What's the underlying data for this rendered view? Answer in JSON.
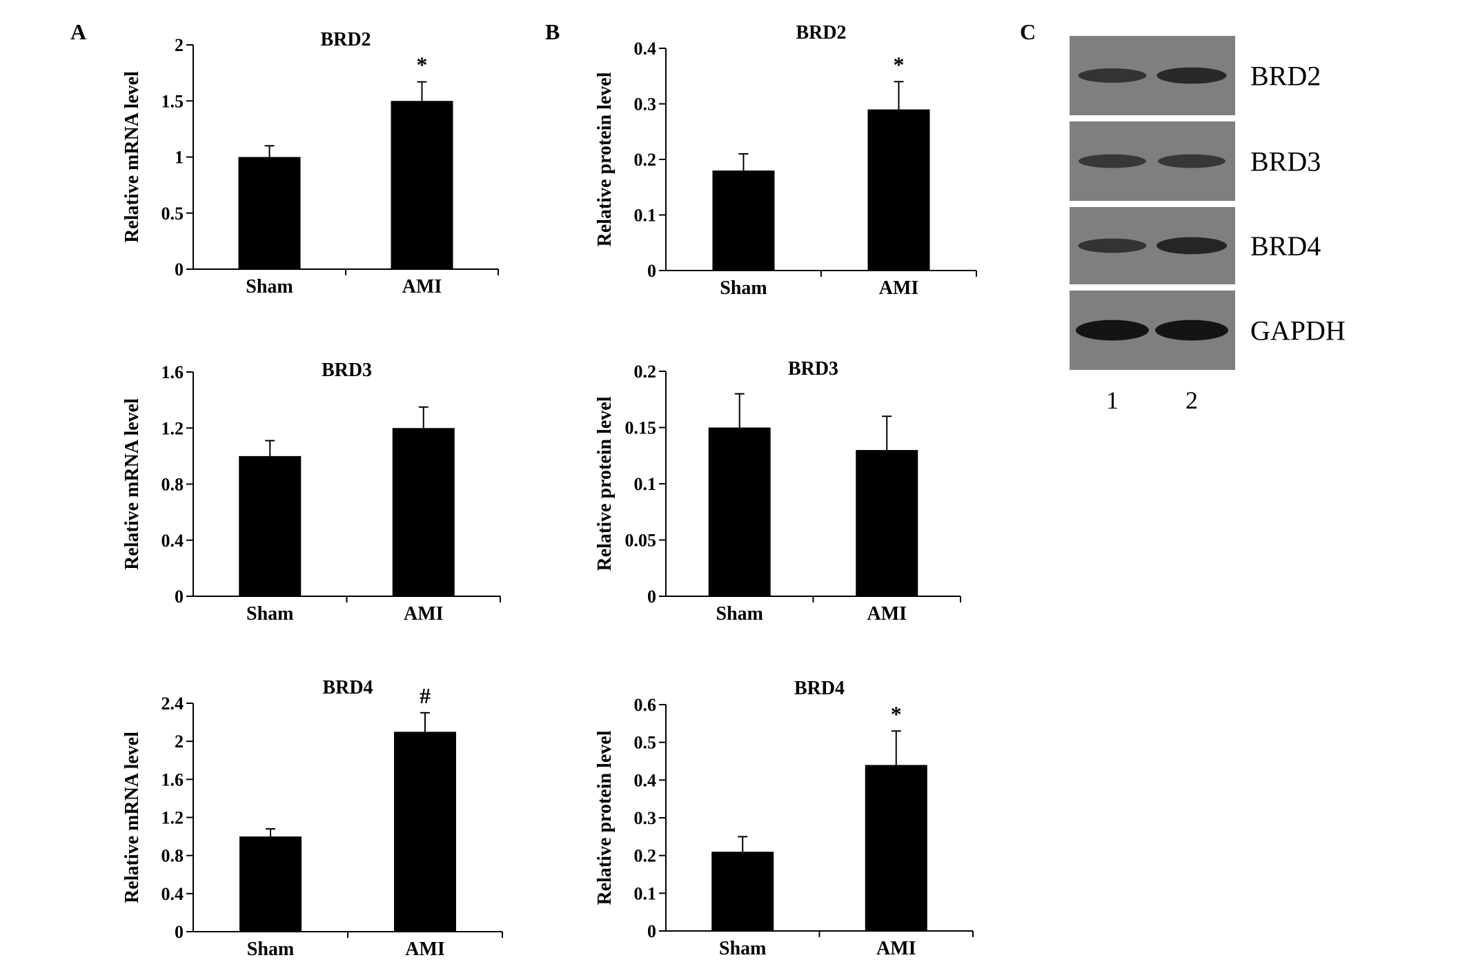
{
  "panel_labels": {
    "a": "A",
    "b": "B",
    "c": "C"
  },
  "chart_data": [
    {
      "type": "bar",
      "panel": "A",
      "title": "BRD2",
      "ylabel": "Relative mRNA level",
      "categories": [
        "Sham",
        "AMI"
      ],
      "values": [
        1.0,
        1.5
      ],
      "errors": [
        0.1,
        0.17
      ],
      "significance": [
        "",
        "*"
      ],
      "ylim": [
        0,
        2
      ],
      "yticks": [
        0,
        0.5,
        1,
        1.5,
        2
      ],
      "ytick_labels": [
        "0",
        "0.5",
        "1",
        "1.5",
        "2"
      ]
    },
    {
      "type": "bar",
      "panel": "A",
      "title": "BRD3",
      "ylabel": "Relative mRNA level",
      "categories": [
        "Sham",
        "AMI"
      ],
      "values": [
        1.0,
        1.2
      ],
      "errors": [
        0.11,
        0.15
      ],
      "significance": [
        "",
        ""
      ],
      "ylim": [
        0,
        1.6
      ],
      "yticks": [
        0,
        0.4,
        0.8,
        1.2,
        1.6
      ],
      "ytick_labels": [
        "0",
        "0.4",
        "0.8",
        "1.2",
        "1.6"
      ]
    },
    {
      "type": "bar",
      "panel": "A",
      "title": "BRD4",
      "ylabel": "Relative mRNA level",
      "categories": [
        "Sham",
        "AMI"
      ],
      "values": [
        1.0,
        2.1
      ],
      "errors": [
        0.08,
        0.2
      ],
      "significance": [
        "",
        "#"
      ],
      "ylim": [
        0,
        2.4
      ],
      "yticks": [
        0,
        0.4,
        0.8,
        1.2,
        1.6,
        2,
        2.4
      ],
      "ytick_labels": [
        "0",
        "0.4",
        "0.8",
        "1.2",
        "1.6",
        "2",
        "2.4"
      ]
    },
    {
      "type": "bar",
      "panel": "B",
      "title": "BRD2",
      "ylabel": "Relative protein level",
      "categories": [
        "Sham",
        "AMI"
      ],
      "values": [
        0.18,
        0.29
      ],
      "errors": [
        0.03,
        0.05
      ],
      "significance": [
        "",
        "*"
      ],
      "ylim": [
        0,
        0.4
      ],
      "yticks": [
        0,
        0.1,
        0.2,
        0.3,
        0.4
      ],
      "ytick_labels": [
        "0",
        "0.1",
        "0.2",
        "0.3",
        "0.4"
      ]
    },
    {
      "type": "bar",
      "panel": "B",
      "title": "BRD3",
      "ylabel": "Relative protein level",
      "categories": [
        "Sham",
        "AMI"
      ],
      "values": [
        0.15,
        0.13
      ],
      "errors": [
        0.03,
        0.03
      ],
      "significance": [
        "",
        ""
      ],
      "ylim": [
        0,
        0.2
      ],
      "yticks": [
        0,
        0.05,
        0.1,
        0.15,
        0.2
      ],
      "ytick_labels": [
        "0",
        "0.05",
        "0.1",
        "0.15",
        "0.2"
      ]
    },
    {
      "type": "bar",
      "panel": "B",
      "title": "BRD4",
      "ylabel": "Relative protein level",
      "categories": [
        "Sham",
        "AMI"
      ],
      "values": [
        0.21,
        0.44
      ],
      "errors": [
        0.04,
        0.09
      ],
      "significance": [
        "",
        "*"
      ],
      "ylim": [
        0,
        0.6
      ],
      "yticks": [
        0,
        0.1,
        0.2,
        0.3,
        0.4,
        0.5,
        0.6
      ],
      "ytick_labels": [
        "0",
        "0.1",
        "0.2",
        "0.3",
        "0.4",
        "0.5",
        "0.6"
      ]
    }
  ],
  "blot": {
    "rows": [
      "BRD2",
      "BRD3",
      "BRD4",
      "GAPDH"
    ],
    "lanes": [
      "1",
      "2"
    ],
    "band_intensity": [
      [
        0.55,
        0.7
      ],
      [
        0.5,
        0.5
      ],
      [
        0.55,
        0.75
      ],
      [
        1.0,
        1.0
      ]
    ],
    "colors": {
      "background": "#7f7f7f",
      "band": "#141414"
    }
  }
}
